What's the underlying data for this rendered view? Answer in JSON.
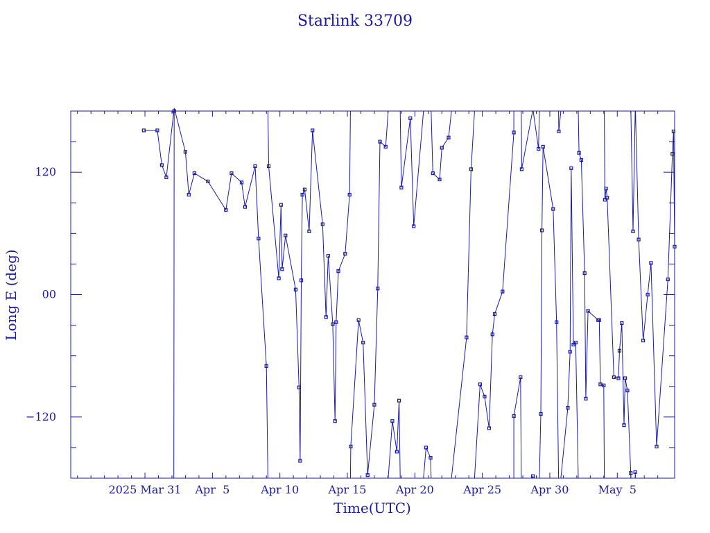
{
  "chart_data": {
    "type": "line",
    "title": "Starlink 33709",
    "xlabel": "Time(UTC)",
    "ylabel": "Long E (deg)",
    "x_tick_labels": [
      {
        "date": "2025-03-31",
        "label": "2025 Mar 31"
      },
      {
        "date": "2025-04-05",
        "label": "Apr  5"
      },
      {
        "date": "2025-04-10",
        "label": "Apr 10"
      },
      {
        "date": "2025-04-15",
        "label": "Apr 15"
      },
      {
        "date": "2025-04-20",
        "label": "Apr 20"
      },
      {
        "date": "2025-04-25",
        "label": "Apr 25"
      },
      {
        "date": "2025-04-30",
        "label": "Apr 30"
      },
      {
        "date": "2025-05-05",
        "label": "May  5"
      }
    ],
    "x_minor_tick_dates": [
      "2025-03-26",
      "2025-03-27",
      "2025-03-28",
      "2025-03-29",
      "2025-03-30",
      "2025-04-01",
      "2025-04-02",
      "2025-04-03",
      "2025-04-04",
      "2025-04-06",
      "2025-04-07",
      "2025-04-08",
      "2025-04-09",
      "2025-04-11",
      "2025-04-12",
      "2025-04-13",
      "2025-04-14",
      "2025-04-16",
      "2025-04-17",
      "2025-04-18",
      "2025-04-19",
      "2025-04-21",
      "2025-04-22",
      "2025-04-23",
      "2025-04-24",
      "2025-04-26",
      "2025-04-27",
      "2025-04-28",
      "2025-04-29",
      "2025-05-01",
      "2025-05-02",
      "2025-05-03",
      "2025-05-04",
      "2025-05-06",
      "2025-05-07",
      "2025-05-08"
    ],
    "y_tick_labels": [
      {
        "value": 120,
        "label": "120"
      },
      {
        "value": 0,
        "label": "00"
      },
      {
        "value": -120,
        "label": "−120"
      }
    ],
    "y_minor_ticks": [
      -150,
      -90,
      -60,
      -30,
      30,
      60,
      90,
      150
    ],
    "xlim": [
      "2025-03-25T12:00",
      "2025-05-09T06:00"
    ],
    "ylim": [
      -180,
      180
    ],
    "grid": false,
    "series": [
      {
        "marker": "square",
        "wrap": 360,
        "points": [
          [
            "2025-03-30T22:00",
            161
          ],
          [
            "2025-03-31T22:00",
            161
          ],
          [
            "2025-04-01T06:00",
            127
          ],
          [
            "2025-04-01T14:00",
            115
          ],
          [
            "2025-04-02T04:00",
            183
          ],
          [
            "2025-04-03T00:00",
            140
          ],
          [
            "2025-04-03T06:00",
            98
          ],
          [
            "2025-04-03T16:00",
            119
          ],
          [
            "2025-04-04T16:00",
            111
          ],
          [
            "2025-04-06T00:00",
            83
          ],
          [
            "2025-04-06T10:00",
            119
          ],
          [
            "2025-04-07T04:00",
            110
          ],
          [
            "2025-04-07T10:00",
            86
          ],
          [
            "2025-04-08T04:00",
            126
          ],
          [
            "2025-04-08T10:00",
            55
          ],
          [
            "2025-04-09T00:00",
            -70
          ],
          [
            "2025-04-09T04:00",
            126
          ],
          [
            "2025-04-09T22:00",
            16
          ],
          [
            "2025-04-10T02:00",
            88
          ],
          [
            "2025-04-10T04:00",
            25
          ],
          [
            "2025-04-10T10:00",
            58
          ],
          [
            "2025-04-11T04:00",
            5
          ],
          [
            "2025-04-11T10:00",
            -91
          ],
          [
            "2025-04-11T12:00",
            -163
          ],
          [
            "2025-04-11T14:00",
            14
          ],
          [
            "2025-04-11T16:00",
            98
          ],
          [
            "2025-04-11T20:00",
            103
          ],
          [
            "2025-04-12T04:00",
            62
          ],
          [
            "2025-04-12T10:00",
            161
          ],
          [
            "2025-04-13T04:00",
            69
          ],
          [
            "2025-04-13T10:00",
            -22
          ],
          [
            "2025-04-13T14:00",
            38
          ],
          [
            "2025-04-13T22:00",
            -29
          ],
          [
            "2025-04-14T02:00",
            -124
          ],
          [
            "2025-04-14T04:00",
            -27
          ],
          [
            "2025-04-14T08:00",
            23
          ],
          [
            "2025-04-14T20:00",
            40
          ],
          [
            "2025-04-15T04:00",
            98
          ],
          [
            "2025-04-15T06:00",
            -149
          ],
          [
            "2025-04-15T20:00",
            -25
          ],
          [
            "2025-04-16T04:00",
            -47
          ],
          [
            "2025-04-16T12:00",
            -177
          ],
          [
            "2025-04-17T00:00",
            -108
          ],
          [
            "2025-04-17T06:00",
            6
          ],
          [
            "2025-04-17T10:00",
            150
          ],
          [
            "2025-04-17T20:00",
            145
          ],
          [
            "2025-04-18T08:00",
            -124
          ],
          [
            "2025-04-18T16:00",
            -154
          ],
          [
            "2025-04-18T20:00",
            -104
          ],
          [
            "2025-04-19T00:00",
            105
          ],
          [
            "2025-04-19T16:00",
            173
          ],
          [
            "2025-04-19T22:00",
            67
          ],
          [
            "2025-04-20T20:00",
            -150
          ],
          [
            "2025-04-21T04:00",
            -160
          ],
          [
            "2025-04-21T08:00",
            119
          ],
          [
            "2025-04-21T20:00",
            113
          ],
          [
            "2025-04-22T00:00",
            144
          ],
          [
            "2025-04-22T12:00",
            154
          ],
          [
            "2025-04-23T20:00",
            -42
          ],
          [
            "2025-04-24T04:00",
            123
          ],
          [
            "2025-04-24T20:00",
            -88
          ],
          [
            "2025-04-25T04:00",
            -100
          ],
          [
            "2025-04-25T12:00",
            -131
          ],
          [
            "2025-04-25T18:00",
            -39
          ],
          [
            "2025-04-25T22:00",
            -19
          ],
          [
            "2025-04-26T12:00",
            3
          ],
          [
            "2025-04-27T08:00",
            159
          ],
          [
            "2025-04-27T08:00",
            -119
          ],
          [
            "2025-04-27T20:00",
            -81
          ],
          [
            "2025-04-27T22:00",
            123
          ],
          [
            "2025-04-28T18:00",
            -178
          ],
          [
            "2025-04-29T04:00",
            143
          ],
          [
            "2025-04-29T08:00",
            -117
          ],
          [
            "2025-04-29T10:00",
            63
          ],
          [
            "2025-04-29T12:00",
            145
          ],
          [
            "2025-04-30T06:00",
            84
          ],
          [
            "2025-04-30T12:00",
            -27
          ],
          [
            "2025-04-30T16:00",
            160
          ],
          [
            "2025-05-01T08:00",
            -111
          ],
          [
            "2025-05-01T12:00",
            -56
          ],
          [
            "2025-05-01T14:00",
            124
          ],
          [
            "2025-05-01T18:00",
            -49
          ],
          [
            "2025-05-01T22:00",
            -47
          ],
          [
            "2025-05-02T04:00",
            139
          ],
          [
            "2025-05-02T08:00",
            132
          ],
          [
            "2025-05-02T14:00",
            21
          ],
          [
            "2025-05-02T16:00",
            -102
          ],
          [
            "2025-05-02T20:00",
            -16
          ],
          [
            "2025-05-03T14:00",
            -25
          ],
          [
            "2025-05-03T16:00",
            -25
          ],
          [
            "2025-05-03T18:00",
            -88
          ],
          [
            "2025-05-04T00:00",
            -89
          ],
          [
            "2025-05-04T02:00",
            93
          ],
          [
            "2025-05-04T04:00",
            104
          ],
          [
            "2025-05-04T06:00",
            95
          ],
          [
            "2025-05-04T18:00",
            -81
          ],
          [
            "2025-05-05T02:00",
            -82
          ],
          [
            "2025-05-05T04:00",
            -55
          ],
          [
            "2025-05-05T08:00",
            -28
          ],
          [
            "2025-05-05T12:00",
            -128
          ],
          [
            "2025-05-05T14:00",
            -82
          ],
          [
            "2025-05-05T18:00",
            -94
          ],
          [
            "2025-05-06T00:00",
            -175
          ],
          [
            "2025-05-06T04:00",
            62
          ],
          [
            "2025-05-06T08:00",
            -174
          ],
          [
            "2025-05-06T14:00",
            54
          ],
          [
            "2025-05-06T22:00",
            -45
          ],
          [
            "2025-05-07T06:00",
            0
          ],
          [
            "2025-05-07T12:00",
            31
          ],
          [
            "2025-05-07T22:00",
            -149
          ],
          [
            "2025-05-08T18:00",
            15
          ],
          [
            "2025-05-09T02:00",
            138
          ],
          [
            "2025-05-09T04:00",
            160
          ],
          [
            "2025-05-09T06:00",
            47
          ]
        ]
      }
    ]
  }
}
